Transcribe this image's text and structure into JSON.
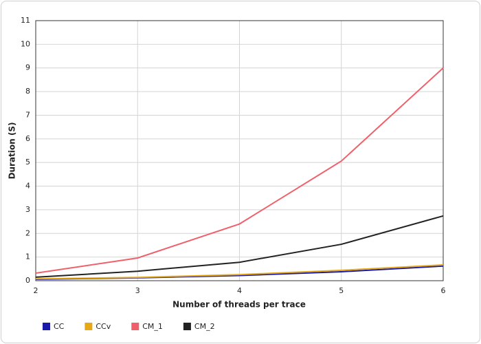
{
  "chart_data": {
    "type": "line",
    "x_label": "Number of threads per trace",
    "y_label": "Duration (S)",
    "x": [
      2,
      3,
      4,
      5,
      6
    ],
    "series": [
      {
        "name": "CC",
        "color": "#1a1aa8",
        "values": [
          0.06,
          0.12,
          0.22,
          0.38,
          0.62
        ]
      },
      {
        "name": "CCv",
        "color": "#e6a817",
        "values": [
          0.08,
          0.14,
          0.26,
          0.44,
          0.67
        ]
      },
      {
        "name": "CM_1",
        "color": "#f0606a",
        "values": [
          0.32,
          0.96,
          2.4,
          5.06,
          9.0
        ]
      },
      {
        "name": "CM_2",
        "color": "#222222",
        "values": [
          0.15,
          0.4,
          0.78,
          1.54,
          2.74
        ]
      }
    ],
    "xlim": [
      2,
      6
    ],
    "xticks": [
      2,
      3,
      4,
      5,
      6
    ],
    "ylim": [
      0,
      11
    ],
    "yticks": [
      0,
      1,
      2,
      3,
      4,
      5,
      6,
      7,
      8,
      9,
      10,
      11
    ],
    "grid": true
  }
}
